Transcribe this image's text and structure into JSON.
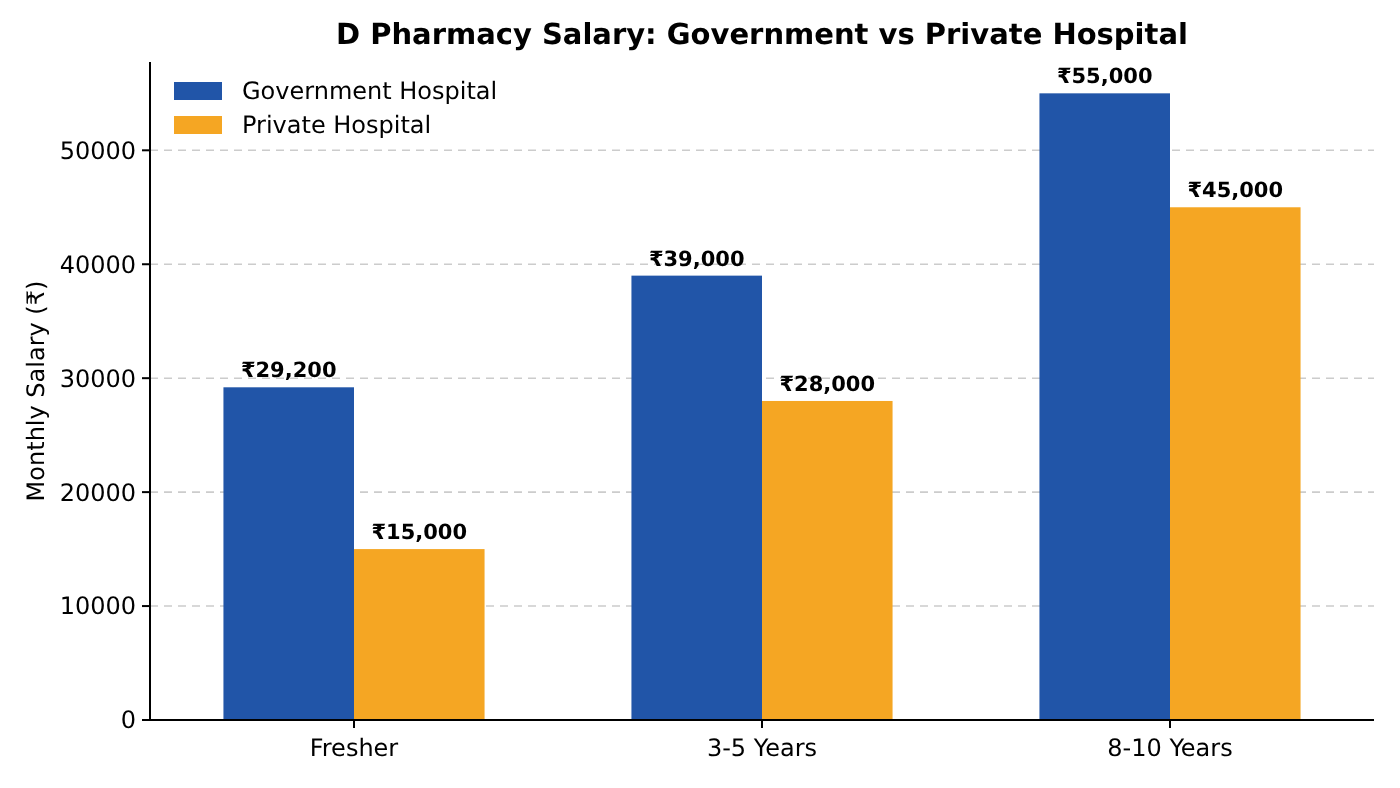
{
  "chart_data": {
    "type": "bar",
    "title": "D Pharmacy Salary: Government vs Private Hospital",
    "ylabel": "Monthly Salary (₹)",
    "categories": [
      "Fresher",
      "3-5 Years",
      "8-10 Years"
    ],
    "series": [
      {
        "name": "Government Hospital",
        "color": "#2155a8",
        "values": [
          29200,
          39000,
          55000
        ],
        "value_labels": [
          "₹29,200",
          "₹39,000",
          "₹55,000"
        ]
      },
      {
        "name": "Private Hospital",
        "color": "#f5a623",
        "values": [
          15000,
          28000,
          45000
        ],
        "value_labels": [
          "₹15,000",
          "₹28,000",
          "₹45,000"
        ]
      }
    ],
    "ylim": [
      0,
      57750
    ],
    "yticks": [
      0,
      10000,
      20000,
      30000,
      40000,
      50000
    ],
    "grid": "y",
    "legend": "top left"
  }
}
